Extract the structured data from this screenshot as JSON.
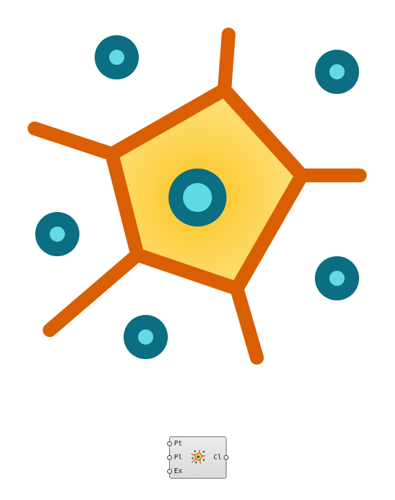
{
  "component": {
    "inputs": [
      {
        "name": "Pt"
      },
      {
        "name": "Pl"
      },
      {
        "name": "Ex"
      }
    ],
    "outputs": [
      {
        "name": "Cl"
      }
    ],
    "icon": "voronoi-cell-icon"
  },
  "illustration": {
    "icon": "voronoi-cell-illustration",
    "colors": {
      "edge": "#d95f02",
      "cell_fill": "#fdd25a",
      "cell_center_glow": "#fcc72a",
      "point_ring": "#0b6e82",
      "point_core": "#63d8e6"
    }
  }
}
